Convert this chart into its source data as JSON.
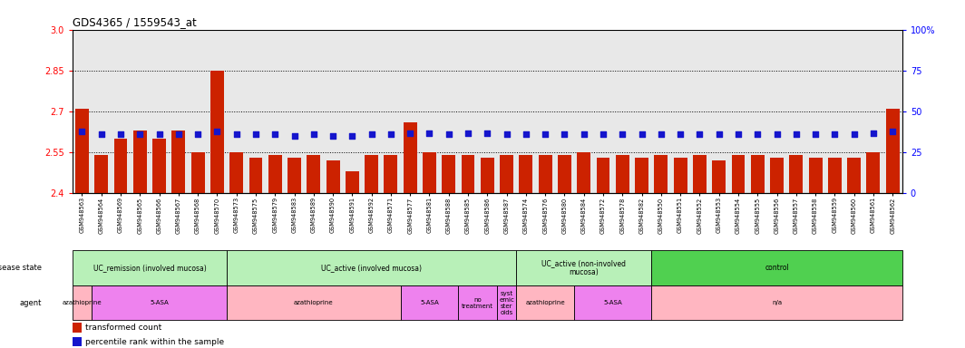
{
  "title": "GDS4365 / 1559543_at",
  "samples": [
    "GSM948563",
    "GSM948564",
    "GSM948569",
    "GSM948565",
    "GSM948566",
    "GSM948567",
    "GSM948568",
    "GSM948570",
    "GSM948573",
    "GSM948575",
    "GSM948579",
    "GSM948583",
    "GSM948589",
    "GSM948590",
    "GSM948591",
    "GSM948592",
    "GSM948571",
    "GSM948577",
    "GSM948581",
    "GSM948588",
    "GSM948585",
    "GSM948586",
    "GSM948587",
    "GSM948574",
    "GSM948576",
    "GSM948580",
    "GSM948584",
    "GSM948572",
    "GSM948578",
    "GSM948582",
    "GSM948550",
    "GSM948551",
    "GSM948552",
    "GSM948553",
    "GSM948554",
    "GSM948555",
    "GSM948556",
    "GSM948557",
    "GSM948558",
    "GSM948559",
    "GSM948560",
    "GSM948561",
    "GSM948562"
  ],
  "red_values": [
    2.71,
    2.54,
    2.6,
    2.63,
    2.6,
    2.63,
    2.55,
    2.85,
    2.55,
    2.53,
    2.54,
    2.53,
    2.54,
    2.52,
    2.48,
    2.54,
    2.54,
    2.66,
    2.55,
    2.54,
    2.54,
    2.53,
    2.54,
    2.54,
    2.54,
    2.54,
    2.55,
    2.53,
    2.54,
    2.53,
    2.54,
    2.53,
    2.54,
    2.52,
    2.54,
    2.54,
    2.53,
    2.54,
    2.53,
    2.53,
    2.53,
    2.55,
    2.71
  ],
  "blue_values": [
    2.625,
    2.615,
    2.615,
    2.615,
    2.615,
    2.615,
    2.615,
    2.625,
    2.615,
    2.615,
    2.615,
    2.61,
    2.615,
    2.61,
    2.61,
    2.615,
    2.615,
    2.62,
    2.62,
    2.615,
    2.62,
    2.62,
    2.615,
    2.615,
    2.615,
    2.615,
    2.615,
    2.615,
    2.615,
    2.615,
    2.615,
    2.615,
    2.615,
    2.615,
    2.615,
    2.615,
    2.615,
    2.615,
    2.615,
    2.615,
    2.615,
    2.62,
    2.625
  ],
  "ylim_left": [
    2.4,
    3.0
  ],
  "yticks_left": [
    2.4,
    2.55,
    2.7,
    2.85,
    3.0
  ],
  "ytick_labels_right": [
    "0",
    "25",
    "50",
    "75",
    "100%"
  ],
  "yticks_right_pos": [
    2.4,
    2.55,
    2.7,
    2.85,
    3.0
  ],
  "hlines": [
    2.55,
    2.7,
    2.85
  ],
  "disease_state_groups": [
    {
      "label": "UC_remission (involved mucosa)",
      "start": 0,
      "end": 8,
      "color": "#b8f0b8"
    },
    {
      "label": "UC_active (involved mucosa)",
      "start": 8,
      "end": 23,
      "color": "#b8f0b8"
    },
    {
      "label": "UC_active (non-involved\nmucosa)",
      "start": 23,
      "end": 30,
      "color": "#b8f0b8"
    },
    {
      "label": "control",
      "start": 30,
      "end": 43,
      "color": "#50d050"
    }
  ],
  "agent_groups": [
    {
      "label": "azathioprine",
      "start": 0,
      "end": 1,
      "color": "#ffb6c1"
    },
    {
      "label": "5-ASA",
      "start": 1,
      "end": 8,
      "color": "#ee82ee"
    },
    {
      "label": "azathioprine",
      "start": 8,
      "end": 17,
      "color": "#ffb6c1"
    },
    {
      "label": "5-ASA",
      "start": 17,
      "end": 20,
      "color": "#ee82ee"
    },
    {
      "label": "no\ntreatment",
      "start": 20,
      "end": 22,
      "color": "#ee82ee"
    },
    {
      "label": "syst\nemic\nster\noids",
      "start": 22,
      "end": 23,
      "color": "#ee82ee"
    },
    {
      "label": "azathioprine",
      "start": 23,
      "end": 26,
      "color": "#ffb6c1"
    },
    {
      "label": "5-ASA",
      "start": 26,
      "end": 30,
      "color": "#ee82ee"
    },
    {
      "label": "n/a",
      "start": 30,
      "end": 43,
      "color": "#ffb6c1"
    }
  ],
  "bar_color": "#cc2200",
  "blue_color": "#1515cc",
  "bar_bottom": 2.4
}
